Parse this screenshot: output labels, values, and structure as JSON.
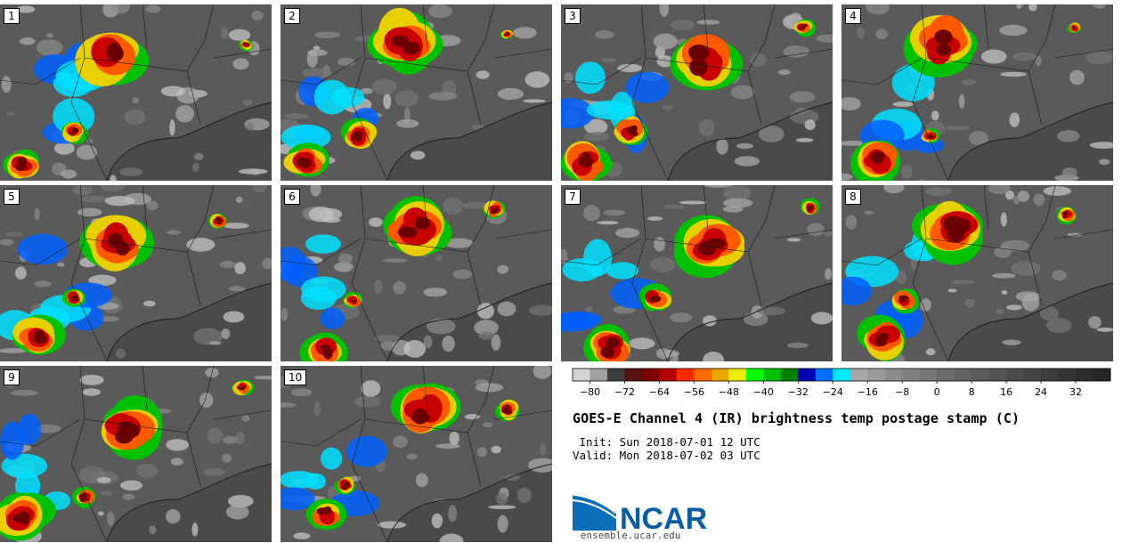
{
  "title": "GOES-E Channel 4 (IR) brightness temp postage stamp (C)",
  "init_text": " Init: Sun 2018-07-01 12 UTC",
  "valid_text": "Valid: Mon 2018-07-02 03 UTC",
  "logo": {
    "name": "NCAR",
    "url": "ensemble.ucar.edu"
  },
  "members": [
    "1",
    "2",
    "3",
    "4",
    "5",
    "6",
    "7",
    "8",
    "9",
    "10"
  ],
  "colorbar": {
    "colors": [
      "#d3d3d3",
      "#a0a0a0",
      "#3c3c3c",
      "#5a1010",
      "#7a0000",
      "#b50000",
      "#ff2b00",
      "#ff6a00",
      "#e8a800",
      "#ecec00",
      "#00ff00",
      "#00c000",
      "#008000",
      "#0000b0",
      "#0070ff",
      "#00e8ff",
      "#a8a8a8",
      "#9a9a9a",
      "#8c8c8c",
      "#808080",
      "#767676",
      "#6c6c6c",
      "#646464",
      "#5c5c5c",
      "#545454",
      "#4c4c4c",
      "#444444",
      "#3c3c3c",
      "#343434",
      "#2c2c2c",
      "#262626"
    ],
    "tick_labels": [
      "−80",
      "−72",
      "−64",
      "−56",
      "−48",
      "−40",
      "−32",
      "−24",
      "−16",
      "−8",
      "0",
      "8",
      "16",
      "24",
      "32"
    ]
  },
  "colors": {
    "background": "#5a5a5a",
    "coast": "#1a1a1a",
    "cold_core": "#6a0000",
    "red": "#c80000",
    "orange": "#ff5a00",
    "yellow": "#e8d000",
    "green": "#00c000",
    "blue": "#0060ff",
    "cyan": "#00e0ff"
  }
}
